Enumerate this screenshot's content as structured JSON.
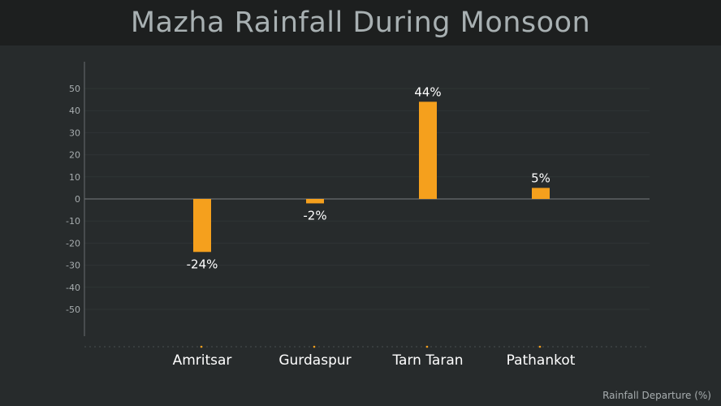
{
  "title": "Mazha Rainfall During Monsoon",
  "footnote": "Rainfall Departure (%)",
  "colors": {
    "background": "#272b2c",
    "title_bar": "#1d1f1f",
    "bar": "#f5a01d",
    "axis": "#6a6e70",
    "grid": "#2f3435",
    "tick_text": "#a7adaf",
    "label_text": "#ffffff"
  },
  "chart_data": {
    "type": "bar",
    "categories": [
      "Amritsar",
      "Gurdaspur",
      "Tarn Taran",
      "Pathankot"
    ],
    "values": [
      -24,
      -2,
      44,
      5
    ],
    "data_labels": [
      "-24%",
      "-2%",
      "44%",
      "5%"
    ],
    "title": "Mazha Rainfall During Monsoon",
    "xlabel": "",
    "ylabel": "",
    "ylim": [
      -60,
      60
    ],
    "yticks": [
      50,
      40,
      30,
      20,
      10,
      0,
      -10,
      -20,
      -30,
      -40,
      -50
    ],
    "grid": true,
    "legend": "none"
  }
}
